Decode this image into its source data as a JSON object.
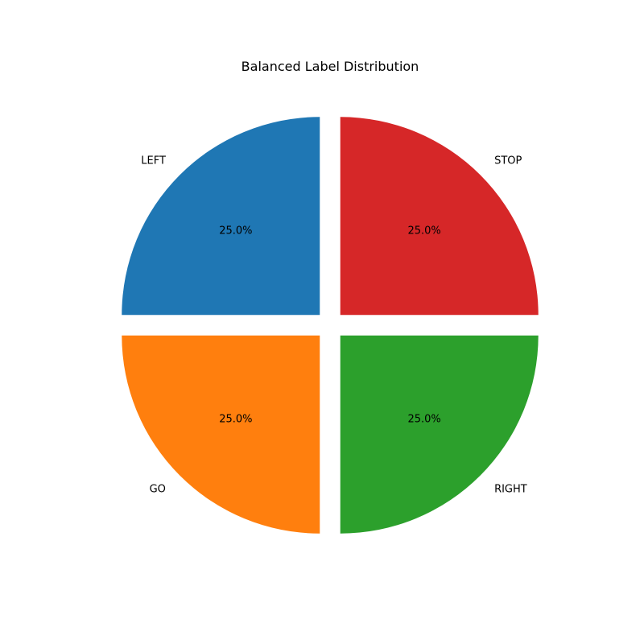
{
  "chart_data": {
    "type": "pie",
    "title": "Balanced Label Distribution",
    "start_angle_deg": 90,
    "direction": "counterclockwise",
    "exploded": true,
    "slices": [
      {
        "label": "LEFT",
        "value": 25,
        "pct_label": "25.0%",
        "color": "#1f77b4"
      },
      {
        "label": "GO",
        "value": 25,
        "pct_label": "25.0%",
        "color": "#ff7f0e"
      },
      {
        "label": "RIGHT",
        "value": 25,
        "pct_label": "25.0%",
        "color": "#2ca02c"
      },
      {
        "label": "STOP",
        "value": 25,
        "pct_label": "25.0%",
        "color": "#d62728"
      }
    ]
  }
}
